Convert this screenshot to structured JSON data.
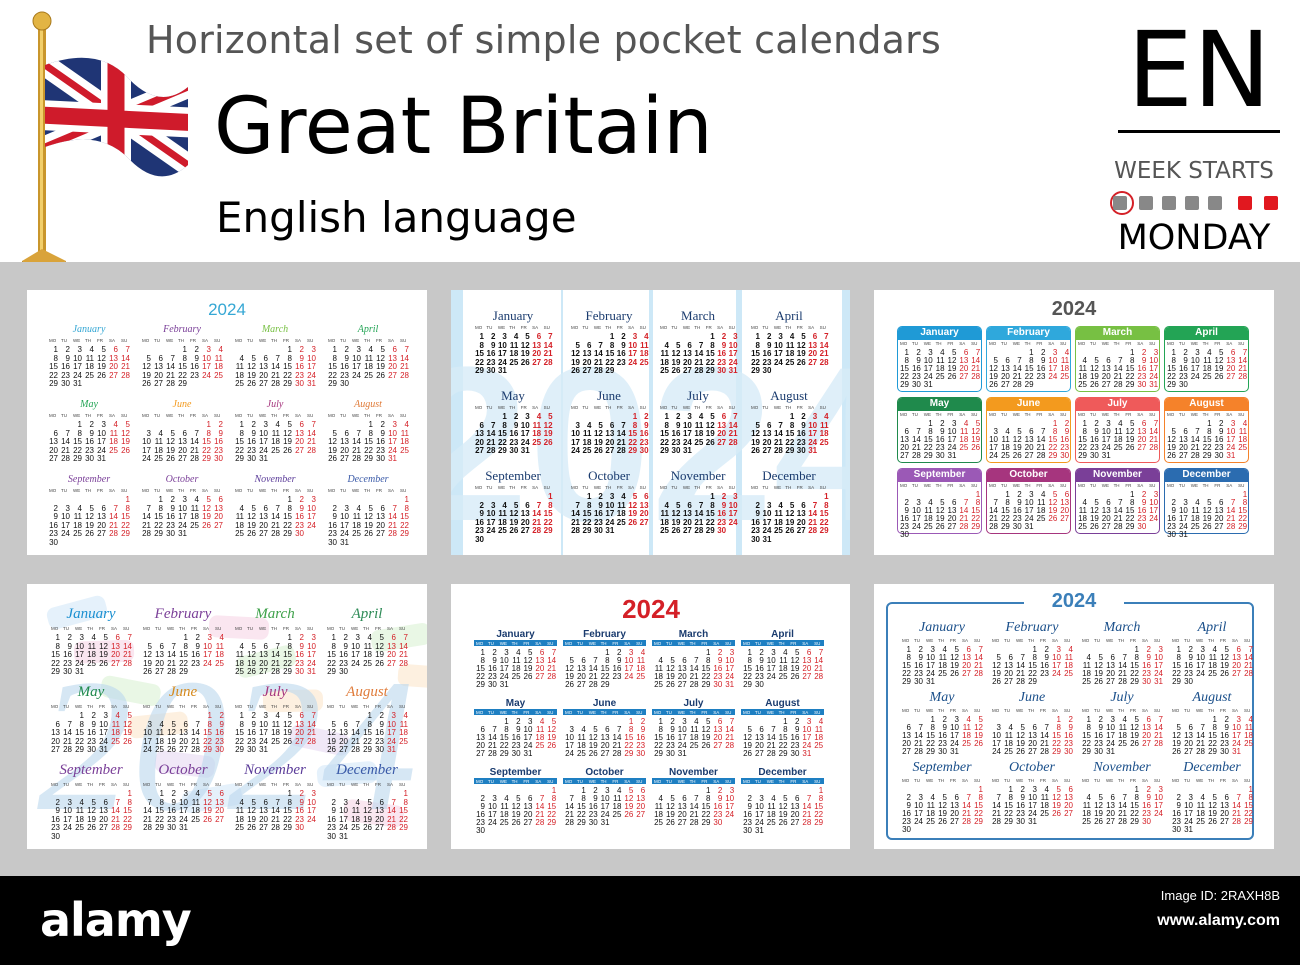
{
  "header": {
    "title": "Horizontal set of simple pocket calendars",
    "country": "Great Britain",
    "language": "English language",
    "lang_code": "EN",
    "week_starts_label": "WEEK STARTS",
    "week_start_day": "MONDAY"
  },
  "year": "2024",
  "weekdays": [
    "MO",
    "TU",
    "WE",
    "TH",
    "FR",
    "SA",
    "SU"
  ],
  "months": [
    {
      "name": "January",
      "offset": 0,
      "days": 31
    },
    {
      "name": "February",
      "offset": 3,
      "days": 29
    },
    {
      "name": "March",
      "offset": 4,
      "days": 31
    },
    {
      "name": "April",
      "offset": 0,
      "days": 30
    },
    {
      "name": "May",
      "offset": 2,
      "days": 31
    },
    {
      "name": "June",
      "offset": 5,
      "days": 30
    },
    {
      "name": "July",
      "offset": 0,
      "days": 31
    },
    {
      "name": "August",
      "offset": 3,
      "days": 31
    },
    {
      "name": "September",
      "offset": 6,
      "days": 30
    },
    {
      "name": "October",
      "offset": 1,
      "days": 31
    },
    {
      "name": "November",
      "offset": 4,
      "days": 30
    },
    {
      "name": "December",
      "offset": 6,
      "days": 31
    }
  ],
  "colors": {
    "weekend": "#d42027",
    "weekday": "#111111",
    "card3_palette": [
      "#1f9ad6",
      "#2fa8dc",
      "#77c043",
      "#23a455",
      "#1f8a4c",
      "#f39a1e",
      "#ef5a5a",
      "#f5822a",
      "#9b59b6",
      "#a6357e",
      "#7a3f98",
      "#2b6cb0"
    ],
    "card4_palette": [
      "#1a8fd0",
      "#7a3f98",
      "#3ea14a",
      "#2e8b57",
      "#1f8a4c",
      "#d68a1e",
      "#a6357e",
      "#e07b39",
      "#7a3f98",
      "#7a3f98",
      "#5b3c99",
      "#3a5aa8"
    ]
  },
  "footer": {
    "brand": "alamy",
    "stock_id": "Image ID: 2RAXH8B",
    "site": "www.alamy.com"
  }
}
